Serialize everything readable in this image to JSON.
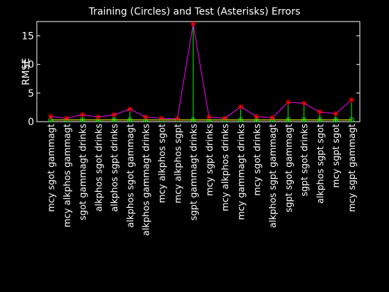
{
  "colors": {
    "background": "#000000",
    "axes": "#ffffff",
    "test_line": "#ff00ff",
    "train_line": "#ffff00",
    "stem": "#00ff00",
    "test_marker": "#ff0000",
    "train_marker": "#00ff00"
  },
  "chart_data": {
    "type": "line",
    "title": "Training (Circles) and Test (Asterisks) Errors",
    "xlabel": "",
    "ylabel": "RMSE",
    "ylim": [
      0,
      17.5
    ],
    "yticks": [
      0,
      5,
      10,
      15
    ],
    "grid": false,
    "categories": [
      "mcy sgot gammagt",
      "mcy alkphos gammagt",
      "sgot gammagt drinks",
      "alkphos sgot drinks",
      "alkphos sgpt drinks",
      "alkphos sgot gammagt",
      "alkphos gammagt drinks",
      "mcy alkphos sgot",
      "mcy alkphos sgpt",
      "sgpt gammagt drinks",
      "mcy sgpt drinks",
      "mcy alkphos drinks",
      "mcy gammagt drinks",
      "mcy sgot drinks",
      "alkphos sgpt gammagt",
      "sgpt sgot gammagt",
      "sgpt sgot drinks",
      "alkphos sgpt sgot",
      "mcy sgpt sgot",
      "mcy sgpt gammagt"
    ],
    "series": [
      {
        "marker": "asterisk",
        "values": [
          0.9,
          0.6,
          1.2,
          0.8,
          1.2,
          2.2,
          0.8,
          0.6,
          0.5,
          17.1,
          0.8,
          0.6,
          2.6,
          0.9,
          0.7,
          3.4,
          3.2,
          1.7,
          1.4,
          3.8
        ]
      },
      {
        "marker": "circle",
        "values": [
          0.3,
          0.3,
          0.3,
          0.3,
          0.3,
          0.3,
          0.3,
          0.3,
          0.3,
          0.3,
          0.3,
          0.3,
          0.3,
          0.3,
          0.3,
          0.3,
          0.3,
          0.3,
          0.3,
          0.3
        ]
      }
    ]
  }
}
